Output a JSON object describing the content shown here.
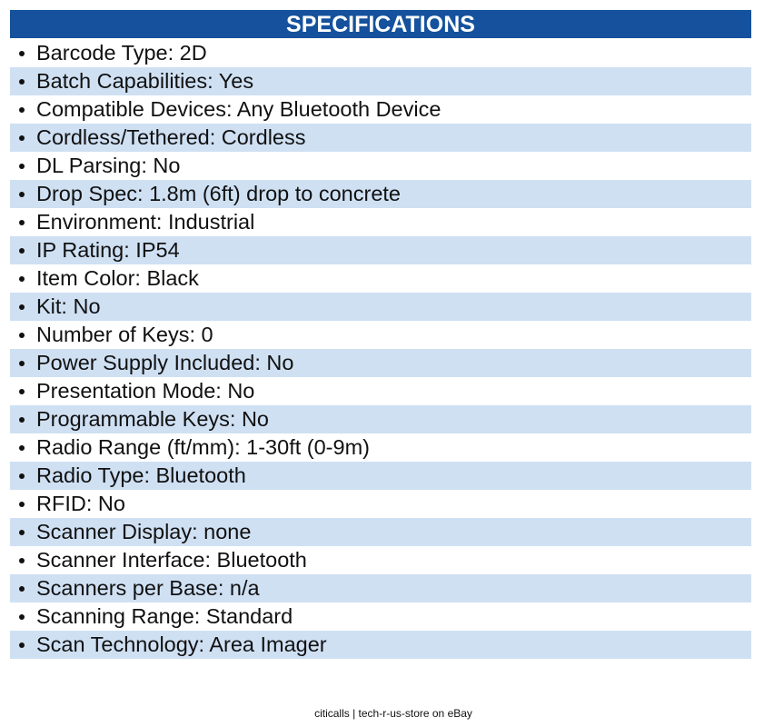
{
  "header": {
    "title": "SPECIFICATIONS"
  },
  "items": [
    "Barcode Type: 2D",
    "Batch Capabilities: Yes",
    "Compatible Devices: Any Bluetooth Device",
    "Cordless/Tethered: Cordless",
    "DL Parsing: No",
    "Drop Spec: 1.8m (6ft) drop to concrete",
    "Environment: Industrial",
    "IP Rating: IP54",
    "Item Color: Black",
    "Kit: No",
    "Number of Keys: 0",
    "Power Supply Included: No",
    "Presentation Mode: No",
    "Programmable Keys: No",
    "Radio Range (ft/mm): 1-30ft (0-9m)",
    "Radio Type: Bluetooth",
    "RFID: No",
    "Scanner Display: none",
    "Scanner Interface: Bluetooth",
    "Scanners per Base: n/a",
    "Scanning Range: Standard",
    "Scan Technology: Area Imager"
  ],
  "footer": {
    "text": "citicalls | tech-r-us-store on eBay"
  }
}
